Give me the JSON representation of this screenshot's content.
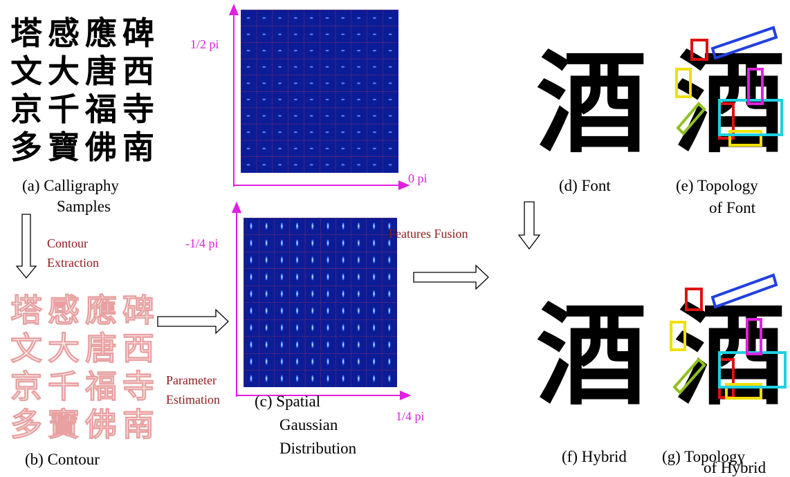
{
  "samples": {
    "characters": [
      [
        "塔",
        "感",
        "應",
        "碑"
      ],
      [
        "文",
        "大",
        "唐",
        "西"
      ],
      [
        "京",
        "千",
        "福",
        "寺"
      ],
      [
        "多",
        "寶",
        "佛",
        "南"
      ]
    ],
    "caption": [
      "(a) Calligraphy",
      "Samples"
    ]
  },
  "contour": {
    "step": [
      "Contour",
      "Extraction"
    ],
    "caption": "(b) Contour"
  },
  "distribution": {
    "step": [
      "Parameter",
      "Estimation"
    ],
    "top_axis": {
      "y_label": "1/2 pi",
      "x_label": "0 pi"
    },
    "bottom_axis": {
      "y_label": "-1/4 pi",
      "x_label": "1/4 pi"
    },
    "caption": [
      "(c) Spatial",
      "Gaussian",
      "Distribution"
    ]
  },
  "fusion": {
    "step": "Features Fusion"
  },
  "glyph": "酒",
  "panels": {
    "font": "(d) Font",
    "topology_font": [
      "(e) Topology",
      "of Font"
    ],
    "hybrid": "(f) Hybrid",
    "topology_hybrid": [
      "(g) Topology",
      "of Hybrid"
    ]
  }
}
